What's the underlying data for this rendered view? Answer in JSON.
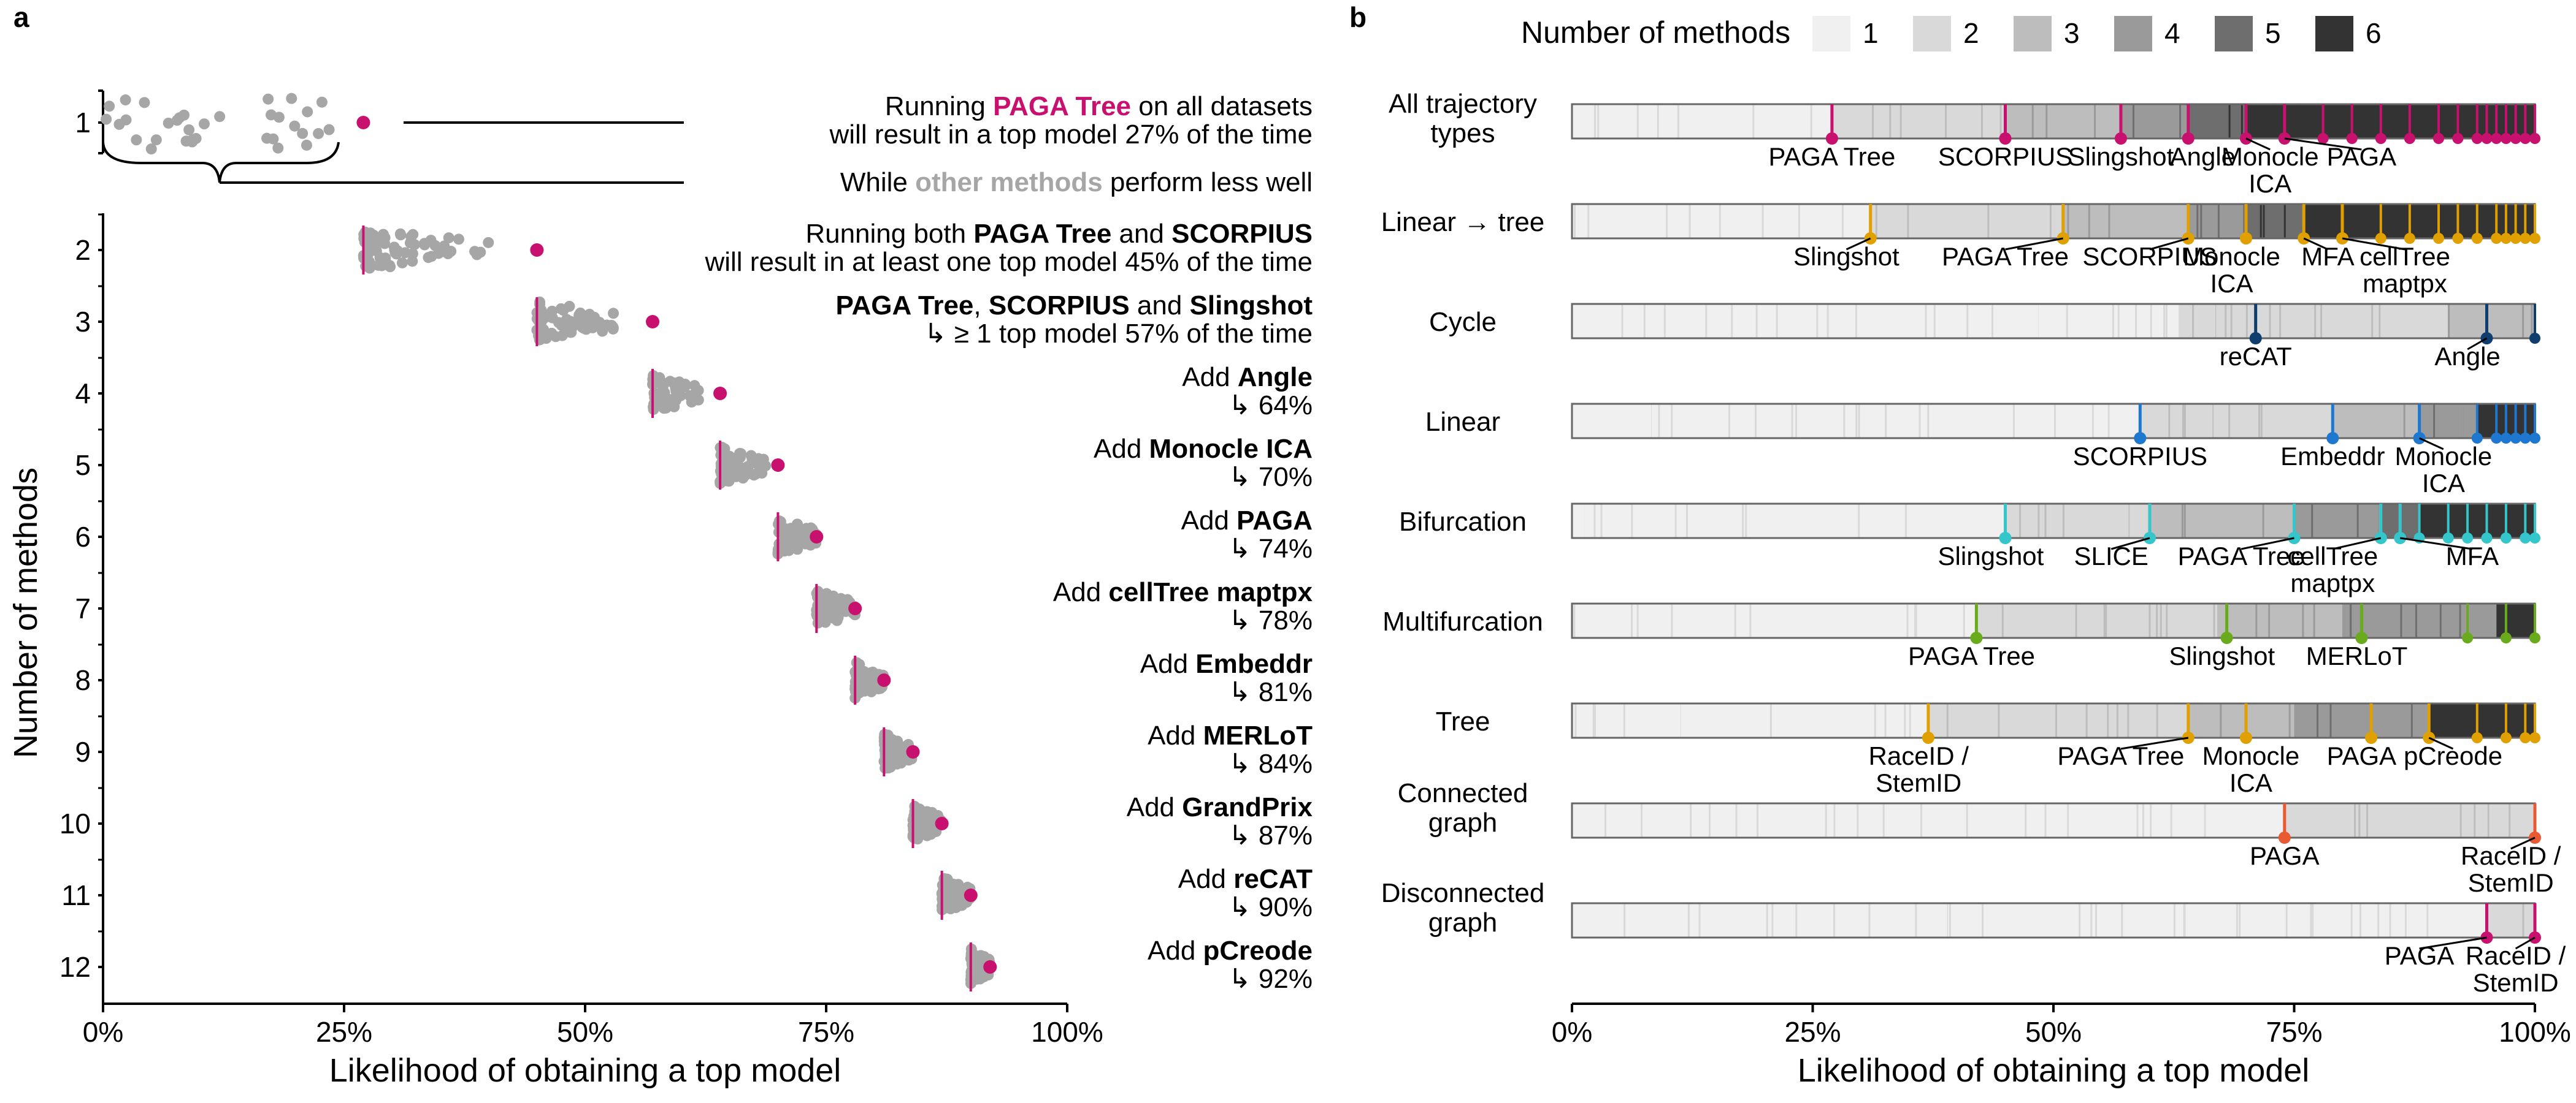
{
  "panels": {
    "a": "a",
    "b": "b"
  },
  "colors": {
    "pink": "#c8106e",
    "grey": "#a6a6a6",
    "gold": "#e0a000",
    "navy": "#0e3d6e",
    "blue": "#1f78d0",
    "cyan": "#35c6cc",
    "green": "#6aab1e",
    "orange": "#ea5a32"
  },
  "chart_data": [
    {
      "type": "scatter",
      "panel": "a",
      "xlabel": "Likelihood of obtaining a top model",
      "ylabel": "Number of methods",
      "x_ticks": [
        "0%",
        "25%",
        "50%",
        "75%",
        "100%"
      ],
      "xlim": [
        0,
        100
      ],
      "y_ticks": [
        "1",
        "2",
        "3",
        "4",
        "5",
        "6",
        "7",
        "8",
        "9",
        "10",
        "11",
        "12"
      ],
      "rows": [
        {
          "n": 1,
          "best": 27,
          "range": [
            0,
            24
          ],
          "texts": [
            [
              {
                "t": "Running "
              },
              {
                "t": "PAGA Tree",
                "b": true,
                "c": "pink"
              },
              {
                "t": " on all datasets"
              }
            ],
            [
              {
                "t": "will result in a top model 27% of the time"
              }
            ]
          ]
        },
        {
          "n": 2,
          "best": 45,
          "range": [
            27,
            40
          ],
          "texts": [
            [
              {
                "t": "Running both "
              },
              {
                "t": "PAGA Tree",
                "b": true
              },
              {
                "t": " and "
              },
              {
                "t": "SCORPIUS",
                "b": true
              }
            ],
            [
              {
                "t": "will result in at least one top model 45% of the time"
              }
            ]
          ]
        },
        {
          "n": 3,
          "best": 57,
          "range": [
            45,
            53
          ],
          "texts": [
            [
              {
                "t": "PAGA Tree",
                "b": true
              },
              {
                "t": ", "
              },
              {
                "t": "SCORPIUS",
                "b": true
              },
              {
                "t": " and "
              },
              {
                "t": "Slingshot",
                "b": true
              }
            ],
            [
              {
                "t": "↳ ≥ 1 top model 57% of the time"
              }
            ]
          ]
        },
        {
          "n": 4,
          "best": 64,
          "range": [
            57,
            62
          ],
          "texts": [
            [
              {
                "t": "Add "
              },
              {
                "t": "Angle",
                "b": true
              }
            ],
            [
              {
                "t": "↳ 64%"
              }
            ]
          ]
        },
        {
          "n": 5,
          "best": 70,
          "range": [
            64,
            69
          ],
          "texts": [
            [
              {
                "t": "Add "
              },
              {
                "t": "Monocle ICA",
                "b": true
              }
            ],
            [
              {
                "t": "↳ 70%"
              }
            ]
          ]
        },
        {
          "n": 6,
          "best": 74,
          "range": [
            70,
            74
          ],
          "texts": [
            [
              {
                "t": "Add "
              },
              {
                "t": "PAGA",
                "b": true
              }
            ],
            [
              {
                "t": "↳ 74%"
              }
            ]
          ]
        },
        {
          "n": 7,
          "best": 78,
          "range": [
            74,
            78
          ],
          "texts": [
            [
              {
                "t": "Add "
              },
              {
                "t": "cellTree maptpx",
                "b": true
              }
            ],
            [
              {
                "t": "↳ 78%"
              }
            ]
          ]
        },
        {
          "n": 8,
          "best": 81,
          "range": [
            78,
            81
          ],
          "texts": [
            [
              {
                "t": "Add "
              },
              {
                "t": "Embeddr",
                "b": true
              }
            ],
            [
              {
                "t": "↳ 81%"
              }
            ]
          ]
        },
        {
          "n": 9,
          "best": 84,
          "range": [
            81,
            84
          ],
          "texts": [
            [
              {
                "t": "Add "
              },
              {
                "t": "MERLoT",
                "b": true
              }
            ],
            [
              {
                "t": "↳ 84%"
              }
            ]
          ]
        },
        {
          "n": 10,
          "best": 87,
          "range": [
            84,
            87
          ],
          "texts": [
            [
              {
                "t": "Add "
              },
              {
                "t": "GrandPrix",
                "b": true
              }
            ],
            [
              {
                "t": "↳ 87%"
              }
            ]
          ]
        },
        {
          "n": 11,
          "best": 90,
          "range": [
            87,
            90
          ],
          "texts": [
            [
              {
                "t": "Add "
              },
              {
                "t": "reCAT",
                "b": true
              }
            ],
            [
              {
                "t": "↳ 90%"
              }
            ]
          ]
        },
        {
          "n": 12,
          "best": 92,
          "range": [
            90,
            92
          ],
          "texts": [
            [
              {
                "t": "Add "
              },
              {
                "t": "pCreode",
                "b": true
              }
            ],
            [
              {
                "t": "↳ 92%"
              }
            ]
          ]
        }
      ],
      "annotation": [
        {
          "t": "While "
        },
        {
          "t": "other methods",
          "b": true,
          "c": "grey"
        },
        {
          "t": " perform less well"
        }
      ]
    },
    {
      "type": "heatmap",
      "panel": "b",
      "xlabel": "Likelihood of obtaining a top model",
      "x_ticks": [
        "0%",
        "25%",
        "50%",
        "75%",
        "100%"
      ],
      "xlim": [
        0,
        100
      ],
      "legend": {
        "title": "Number of methods",
        "items": [
          "1",
          "2",
          "3",
          "4",
          "5",
          "6"
        ],
        "placement": "top"
      },
      "rows": [
        {
          "name": [
            "All trajectory types"
          ],
          "color": "pink",
          "segments": [
            [
              0,
              27,
              1
            ],
            [
              27,
              45,
              2
            ],
            [
              45,
              57,
              3
            ],
            [
              57,
              64,
              4
            ],
            [
              64,
              70,
              5
            ],
            [
              70,
              100,
              6
            ]
          ],
          "methods": [
            {
              "x": 27,
              "label": [
                "PAGA Tree"
              ],
              "lx": 27,
              "lr": 1
            },
            {
              "x": 45,
              "label": [
                "SCORPIUS"
              ],
              "lx": 45,
              "lr": 1
            },
            {
              "x": 57,
              "label": [
                "Slingshot"
              ],
              "lx": 57,
              "lr": 1
            },
            {
              "x": 64,
              "label": [
                "Angle"
              ],
              "lx": 65.5,
              "lr": 1
            },
            {
              "x": 70,
              "label": [
                "Monocle",
                "ICA"
              ],
              "lx": 72.5,
              "lr": 1
            },
            {
              "x": 74,
              "label": [
                "PAGA"
              ],
              "lx": 82,
              "lr": 1
            }
          ],
          "extra": [
            78,
            81,
            84,
            87,
            90,
            92,
            94,
            95,
            96,
            97,
            98,
            99,
            100
          ]
        },
        {
          "name": [
            "Linear → tree"
          ],
          "color": "gold",
          "segments": [
            [
              0,
              31,
              1
            ],
            [
              31,
              51,
              2
            ],
            [
              51,
              64,
              3
            ],
            [
              64,
              70,
              4
            ],
            [
              70,
              76,
              5
            ],
            [
              76,
              100,
              6
            ]
          ],
          "methods": [
            {
              "x": 31,
              "label": [
                "Slingshot"
              ],
              "lx": 28.5,
              "lr": 1
            },
            {
              "x": 51,
              "label": [
                "PAGA Tree"
              ],
              "lx": 45,
              "lr": 1
            },
            {
              "x": 64,
              "label": [
                "SCORPIUS"
              ],
              "lx": 60,
              "lr": 1
            },
            {
              "x": 70,
              "label": [
                "Monocle",
                "ICA"
              ],
              "lx": 68.5,
              "lr": 1
            },
            {
              "x": 76,
              "label": [
                "MFA"
              ],
              "lx": 78.5,
              "lr": 1
            },
            {
              "x": 80,
              "label": [
                "cellTree",
                "maptpx"
              ],
              "lx": 86.5,
              "lr": 1
            }
          ],
          "extra": [
            84,
            87,
            90,
            92,
            94,
            96,
            97,
            98,
            99,
            100
          ]
        },
        {
          "name": [
            "Cycle"
          ],
          "color": "navy",
          "segments": [
            [
              0,
              63,
              1
            ],
            [
              63,
              91,
              2
            ],
            [
              91,
              100,
              3
            ]
          ],
          "methods": [
            {
              "x": 71,
              "label": [
                "reCAT"
              ],
              "lx": 71,
              "lr": 1
            },
            {
              "x": 95,
              "label": [
                "Angle"
              ],
              "lx": 93,
              "lr": 1
            }
          ],
          "extra": [
            100
          ]
        },
        {
          "name": [
            "Linear"
          ],
          "color": "blue",
          "segments": [
            [
              0,
              59,
              1
            ],
            [
              59,
              79,
              2
            ],
            [
              79,
              88,
              3
            ],
            [
              88,
              94,
              4
            ],
            [
              94,
              100,
              6
            ]
          ],
          "methods": [
            {
              "x": 59,
              "label": [
                "SCORPIUS"
              ],
              "lx": 59,
              "lr": 1
            },
            {
              "x": 79,
              "label": [
                "Embeddr"
              ],
              "lx": 79,
              "lr": 1
            },
            {
              "x": 88,
              "label": [
                "Monocle",
                "ICA"
              ],
              "lx": 90.5,
              "lr": 1
            }
          ],
          "extra": [
            94,
            96,
            97,
            98,
            99,
            100
          ]
        },
        {
          "name": [
            "Bifurcation"
          ],
          "color": "cyan",
          "segments": [
            [
              0,
              45,
              1
            ],
            [
              45,
              60,
              2
            ],
            [
              60,
              75,
              3
            ],
            [
              75,
              84,
              4
            ],
            [
              84,
              88,
              5
            ],
            [
              88,
              100,
              6
            ]
          ],
          "methods": [
            {
              "x": 45,
              "label": [
                "Slingshot"
              ],
              "lx": 43.5,
              "lr": 1
            },
            {
              "x": 60,
              "label": [
                "SLICE"
              ],
              "lx": 56,
              "lr": 1
            },
            {
              "x": 75,
              "label": [
                "PAGA Tree"
              ],
              "lx": 69.5,
              "lr": 1
            },
            {
              "x": 84,
              "label": [
                "cellTree",
                "maptpx"
              ],
              "lx": 79,
              "lr": 1
            },
            {
              "x": 86,
              "label": [
                "MFA"
              ],
              "lx": 93.5,
              "lr": 1
            }
          ],
          "extra": [
            88,
            91,
            93,
            95,
            97,
            99,
            100
          ]
        },
        {
          "name": [
            "Multifurcation"
          ],
          "color": "green",
          "segments": [
            [
              0,
              42,
              1
            ],
            [
              42,
              67,
              2
            ],
            [
              67,
              80,
              3
            ],
            [
              80,
              96,
              4
            ],
            [
              96,
              100,
              6
            ]
          ],
          "methods": [
            {
              "x": 42,
              "label": [
                "PAGA Tree"
              ],
              "lx": 41.5,
              "lr": 1
            },
            {
              "x": 68,
              "label": [
                "Slingshot"
              ],
              "lx": 67.5,
              "lr": 1
            },
            {
              "x": 82,
              "label": [
                "MERLoT"
              ],
              "lx": 81.5,
              "lr": 1
            }
          ],
          "extra": [
            93,
            97,
            100
          ]
        },
        {
          "name": [
            "Tree"
          ],
          "color": "gold",
          "segments": [
            [
              0,
              37,
              1
            ],
            [
              37,
              64,
              2
            ],
            [
              64,
              75,
              3
            ],
            [
              75,
              89,
              4
            ],
            [
              89,
              100,
              6
            ]
          ],
          "methods": [
            {
              "x": 37,
              "label": [
                "RaceID /",
                "StemID"
              ],
              "lx": 36,
              "lr": 1
            },
            {
              "x": 64,
              "label": [
                "PAGA Tree"
              ],
              "lx": 57,
              "lr": 1
            },
            {
              "x": 70,
              "label": [
                "Monocle",
                "ICA"
              ],
              "lx": 70.5,
              "lr": 1
            },
            {
              "x": 83,
              "label": [
                "PAGA"
              ],
              "lx": 82,
              "lr": 1
            },
            {
              "x": 89,
              "label": [
                "pCreode"
              ],
              "lx": 91.5,
              "lr": 1
            }
          ],
          "extra": [
            94,
            97,
            99,
            100
          ]
        },
        {
          "name": [
            "Connected",
            "graph"
          ],
          "color": "orange",
          "segments": [
            [
              0,
              74,
              1
            ],
            [
              74,
              100,
              2
            ]
          ],
          "methods": [
            {
              "x": 74,
              "label": [
                "PAGA"
              ],
              "lx": 74,
              "lr": 1
            },
            {
              "x": 100,
              "label": [
                "RaceID /",
                "StemID"
              ],
              "lx": 97.5,
              "lr": 1
            }
          ],
          "extra": []
        },
        {
          "name": [
            "Disconnected",
            "graph"
          ],
          "color": "pink",
          "segments": [
            [
              0,
              95,
              1
            ],
            [
              95,
              100,
              2
            ]
          ],
          "methods": [
            {
              "x": 95,
              "label": [
                "PAGA"
              ],
              "lx": 88,
              "lr": 1
            },
            {
              "x": 100,
              "label": [
                "RaceID /",
                "StemID"
              ],
              "lx": 98,
              "lr": 1
            }
          ],
          "extra": []
        }
      ]
    }
  ]
}
